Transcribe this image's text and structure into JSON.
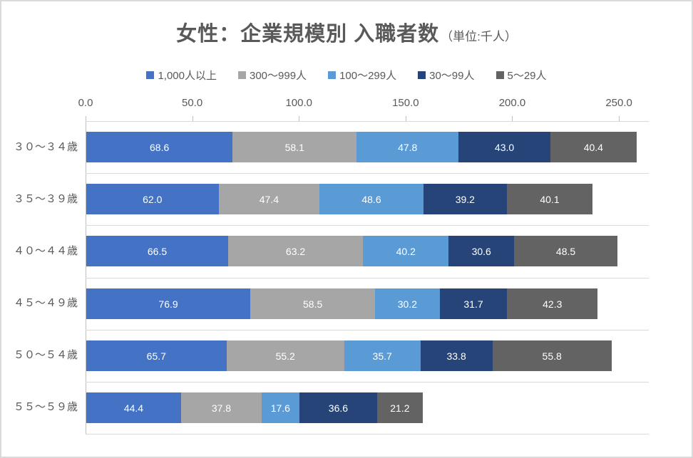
{
  "title": {
    "main": "女性：企業規模別 入職者数",
    "unit": "（単位:千人）"
  },
  "chart_data": {
    "type": "bar",
    "orientation": "horizontal",
    "stacked": true,
    "title": "女性：企業規模別 入職者数（単位:千人）",
    "xlabel": "",
    "ylabel": "",
    "unit": "千人",
    "categories": [
      "３０〜３４歳",
      "３５〜３９歳",
      "４０〜４４歳",
      "４５〜４９歳",
      "５０〜５４歳",
      "５５〜５９歳"
    ],
    "series": [
      {
        "name": "1,000人以上",
        "color": "#4472C4",
        "values": [
          68.6,
          62.0,
          66.5,
          76.9,
          65.7,
          44.4
        ]
      },
      {
        "name": "300〜999人",
        "color": "#A6A6A6",
        "values": [
          58.1,
          47.4,
          63.2,
          58.5,
          55.2,
          37.8
        ]
      },
      {
        "name": "100〜299人",
        "color": "#5B9BD5",
        "values": [
          47.8,
          48.6,
          40.2,
          30.2,
          35.7,
          17.6
        ]
      },
      {
        "name": "30〜99人",
        "color": "#264478",
        "values": [
          43.0,
          39.2,
          30.6,
          31.7,
          33.8,
          36.6
        ]
      },
      {
        "name": "5〜29人",
        "color": "#636363",
        "values": [
          40.4,
          40.1,
          48.5,
          42.3,
          55.8,
          21.2
        ]
      }
    ],
    "xticks": [
      0,
      50,
      100,
      150,
      200,
      250
    ],
    "xtick_labels": [
      "0.0",
      "50.0",
      "100.0",
      "150.0",
      "200.0",
      "250.0"
    ],
    "xlim": [
      0,
      264
    ],
    "grid": "category-separators",
    "legend_position": "top",
    "value_labels": "inside-center-white-one-decimal"
  },
  "colors": {
    "background": "#FFFFFF",
    "canvas_border": "#DADADA",
    "text": "#595959",
    "gridline": "#D9D9D9",
    "axis": "#BFBFBF",
    "value_label": "#FFFFFF"
  }
}
